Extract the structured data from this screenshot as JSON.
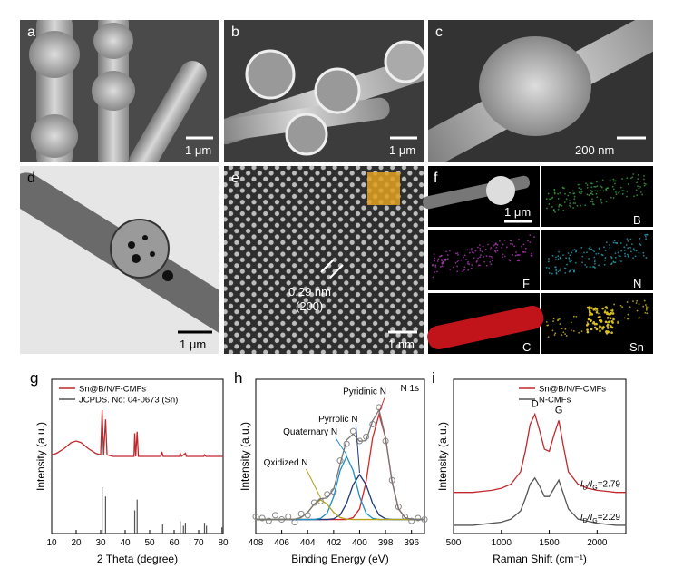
{
  "panels": [
    {
      "label": "a",
      "scale": "1 μm"
    },
    {
      "label": "b",
      "scale": "1 μm"
    },
    {
      "label": "c",
      "scale": "200 nm"
    },
    {
      "label": "d",
      "scale": "1 μm"
    },
    {
      "label": "e",
      "scale": "1 nm",
      "annotations": [
        "0.29 nm",
        "(200)"
      ]
    },
    {
      "label": "f",
      "scale": "1 μm",
      "maps": [
        "B",
        "F",
        "N",
        "C",
        "Sn"
      ]
    }
  ],
  "chart_data": [
    {
      "label": "g",
      "type": "line",
      "xlabel": "2 Theta (degree)",
      "ylabel": "Intensity (a.u.)",
      "xlim": [
        10,
        80
      ],
      "xticks": [
        10,
        20,
        30,
        40,
        50,
        60,
        70,
        80
      ],
      "ylim": [
        0,
        100
      ],
      "legend": "upper left",
      "series": [
        {
          "name": "Sn@B/N/F-CMFs",
          "color": "#c0282d",
          "style": "line",
          "x": [
            10,
            12,
            15,
            18,
            20,
            22,
            25,
            28,
            30,
            30.6,
            31.2,
            32,
            32.6,
            35,
            40,
            43.6,
            43.9,
            44.3,
            44.9,
            45.4,
            50,
            54.6,
            55,
            55.5,
            62.2,
            62.5,
            63,
            63.8,
            64.6,
            65,
            70,
            72.1,
            72.4,
            73,
            80
          ],
          "values": [
            51,
            52,
            55,
            59,
            60,
            59,
            55,
            52,
            51,
            80,
            51,
            74,
            51,
            50,
            50,
            50,
            65,
            50,
            66,
            50,
            50,
            50,
            53,
            50,
            50,
            52,
            50,
            51,
            52,
            50,
            50,
            50,
            51,
            50,
            50
          ]
        },
        {
          "name": "JCPDS. No: 04-0673 (Sn)",
          "color": "#555555",
          "style": "stick",
          "x": [
            30.6,
            32,
            43.9,
            44.9,
            55.3,
            62.5,
            63.8,
            64.6,
            72.4,
            73.2,
            79.5
          ],
          "values": [
            30,
            24,
            15,
            22,
            6,
            8,
            5,
            7,
            7,
            5,
            4
          ]
        }
      ]
    },
    {
      "label": "h",
      "type": "line",
      "xlabel": "Binding Energy (eV)",
      "ylabel": "Intensity (a.u.)",
      "note": "N 1s",
      "xlim": [
        408,
        395
      ],
      "xticks": [
        408,
        406,
        404,
        402,
        400,
        398,
        396
      ],
      "ylim": [
        0,
        110
      ],
      "x": [
        408,
        407.5,
        407,
        406.5,
        406,
        405.5,
        405,
        404.5,
        404,
        403.5,
        403,
        402.5,
        402,
        401.5,
        401,
        400.5,
        400,
        399.5,
        399,
        398.5,
        398,
        397.5,
        397,
        396.5,
        396,
        395.5,
        395
      ],
      "series": [
        {
          "color": "#888888",
          "style": "scatter",
          "values": [
            12,
            11,
            9,
            13,
            10,
            12,
            8,
            14,
            13,
            22,
            23,
            28,
            30,
            52,
            64,
            73,
            66,
            69,
            78,
            90,
            66,
            38,
            19,
            12,
            9,
            11,
            10
          ]
        },
        {
          "name": "Pyridinic N",
          "color": "#d62728",
          "style": "line",
          "values": [
            10,
            10,
            10,
            10,
            10,
            10,
            10,
            10,
            10,
            10,
            10,
            10,
            10,
            10,
            10,
            11.3,
            17.6,
            37,
            68.1,
            85,
            68.1,
            37,
            17.6,
            11.3,
            10,
            10,
            10
          ]
        },
        {
          "name": "Pyrrolic N",
          "color": "#1f3a7a",
          "style": "line",
          "values": [
            10,
            10,
            10,
            10,
            10,
            10,
            10,
            10,
            10,
            10,
            10,
            10,
            10.5,
            13.2,
            21.5,
            34.8,
            42,
            34.8,
            21.5,
            13.2,
            10.5,
            10,
            10,
            10,
            10,
            10,
            10
          ]
        },
        {
          "name": "Quaternary N",
          "color": "#1f8fc4",
          "style": "line",
          "values": [
            10,
            10,
            10,
            10,
            10,
            10,
            10,
            10,
            10,
            10,
            10.8,
            14.5,
            26.2,
            44.9,
            55,
            44.9,
            26.2,
            14.5,
            10.8,
            10,
            10,
            10,
            10,
            10,
            10,
            10,
            10
          ]
        },
        {
          "name": "Qxidized N",
          "color": "#b5a020",
          "style": "line",
          "values": [
            10,
            10,
            10,
            10,
            10,
            10,
            10.2,
            11.4,
            15,
            20.9,
            24,
            20.9,
            15,
            11.4,
            10.2,
            10,
            10,
            10,
            10,
            10,
            10,
            10,
            10,
            10,
            10,
            10,
            10
          ]
        },
        {
          "color": "#777777",
          "style": "line",
          "values": [
            10,
            10,
            10,
            10,
            10,
            10,
            10.2,
            11.4,
            15,
            20.9,
            24.8,
            25.4,
            31.7,
            49.5,
            66.7,
            71,
            65.8,
            66.3,
            80.4,
            88.2,
            68.6,
            37,
            17.6,
            11.3,
            10,
            10,
            10
          ]
        }
      ]
    },
    {
      "label": "i",
      "type": "line",
      "xlabel": "Raman Shift (cm⁻¹)",
      "ylabel": "Intensity (a.u.)",
      "xlim": [
        500,
        2300
      ],
      "xticks": [
        500,
        1000,
        1500,
        2000
      ],
      "ylim": [
        0,
        75
      ],
      "legend": "upper right",
      "annotations": [
        "D",
        "G"
      ],
      "ratio_labels": [
        [
          "I",
          "D",
          "/I",
          "G",
          "=2.79"
        ],
        [
          "I",
          "D",
          "/I",
          "G",
          "=2.29"
        ]
      ],
      "x": [
        500,
        600,
        700,
        800,
        900,
        1000,
        1100,
        1200,
        1250,
        1300,
        1350,
        1400,
        1450,
        1500,
        1550,
        1600,
        1650,
        1700,
        1800,
        1900,
        2000,
        2100,
        2200,
        2300
      ],
      "series": [
        {
          "name": "Sn@B/N/F-CMFs",
          "color": "#c0282d",
          "style": "line",
          "values": [
            20,
            20,
            20,
            20.5,
            21,
            22,
            24,
            30,
            40,
            53,
            58,
            50,
            41,
            40,
            48,
            55,
            42,
            30,
            24,
            22,
            21,
            20.5,
            20,
            20
          ]
        },
        {
          "name": "N-CMFs",
          "color": "#555555",
          "style": "line",
          "values": [
            4,
            4,
            4,
            4.5,
            5,
            5.5,
            7,
            11,
            17,
            24,
            27,
            23,
            18,
            18,
            22,
            26,
            19,
            12,
            7,
            6,
            5,
            4.5,
            4,
            4
          ]
        }
      ]
    }
  ]
}
